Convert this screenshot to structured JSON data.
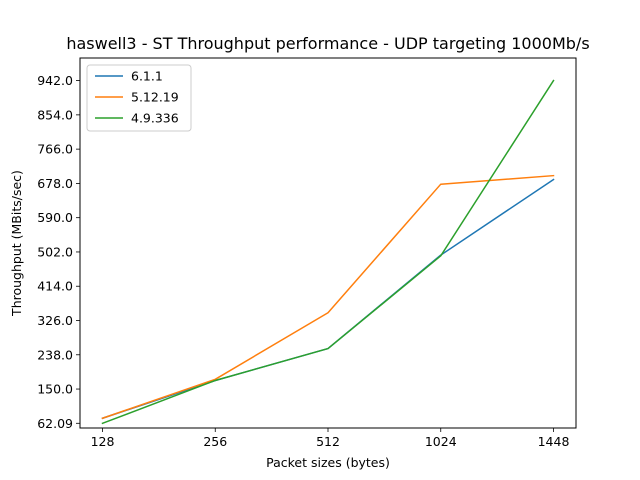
{
  "chart_data": {
    "type": "line",
    "title": "haswell3 - ST Throughput performance - UDP targeting 1000Mb/s",
    "xlabel": "Packet sizes (bytes)",
    "ylabel": "Throughput (MBits/sec)",
    "categories": [
      "128",
      "256",
      "512",
      "1024",
      "1448"
    ],
    "yticks": [
      "62.09",
      "150.0",
      "238.0",
      "326.0",
      "414.0",
      "502.0",
      "590.0",
      "678.0",
      "766.0",
      "854.0",
      "942.0"
    ],
    "ylim": [
      50,
      1000
    ],
    "grid": false,
    "legend_position": "upper-left",
    "series": [
      {
        "name": "6.1.1",
        "color": "#1f77b4",
        "values": [
          75,
          172,
          254,
          494,
          688
        ]
      },
      {
        "name": "5.12.19",
        "color": "#ff7f0e",
        "values": [
          75,
          175,
          346,
          676,
          698
        ]
      },
      {
        "name": "4.9.336",
        "color": "#2ca02c",
        "values": [
          62,
          172,
          254,
          492,
          942
        ]
      }
    ]
  }
}
